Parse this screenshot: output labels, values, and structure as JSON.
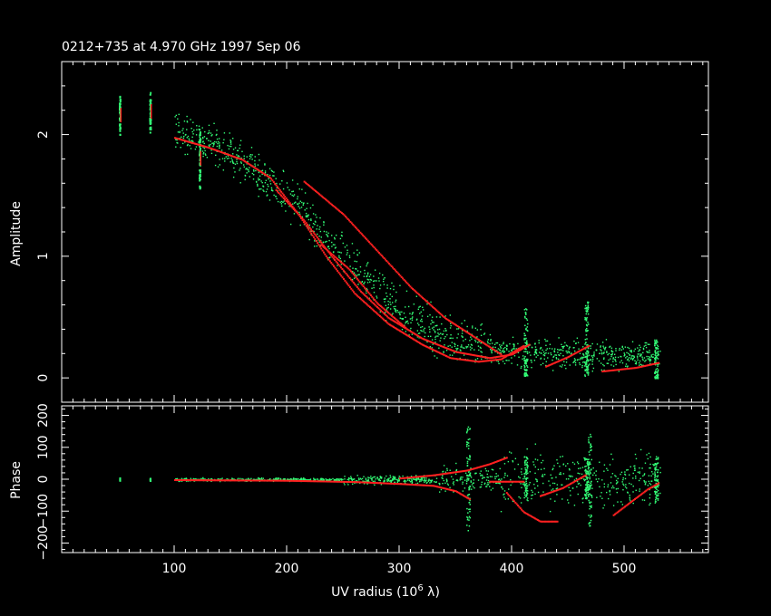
{
  "title": "0212+735 at 4.970 GHz 1997 Sep 06",
  "colors": {
    "background": "#000000",
    "axes": "#ffffff",
    "data": "#33ff77",
    "model": "#ff2020"
  },
  "chart_data": [
    {
      "type": "scatter",
      "name": "amplitude-panel",
      "title": "0212+735 at 4.970 GHz 1997 Sep 06",
      "xlabel": "UV radius  (10",
      "xlabel_sup": "6",
      "xlabel_tail": " λ)",
      "ylabel": "Amplitude",
      "xlim": [
        0,
        575
      ],
      "ylim": [
        -0.2,
        2.6
      ],
      "xticks": [
        100,
        200,
        300,
        400,
        500
      ],
      "yticks": [
        0,
        1,
        2
      ],
      "ytick_labels": [
        "0",
        "1",
        "2"
      ],
      "grid": false,
      "clusters": [
        {
          "x": 52,
          "y_min": 2.0,
          "y_max": 2.32
        },
        {
          "x": 79,
          "y_min": 2.02,
          "y_max": 2.36
        },
        {
          "x": 123,
          "y_min": 1.55,
          "y_max": 2.06
        }
      ],
      "data_trend": [
        [
          100,
          2.05
        ],
        [
          150,
          1.85
        ],
        [
          200,
          1.5
        ],
        [
          250,
          1.0
        ],
        [
          300,
          0.55
        ],
        [
          350,
          0.3
        ],
        [
          400,
          0.22
        ],
        [
          450,
          0.2
        ],
        [
          530,
          0.18
        ]
      ],
      "model_curves": [
        [
          [
            100,
            1.98
          ],
          [
            130,
            1.9
          ],
          [
            160,
            1.8
          ],
          [
            185,
            1.65
          ],
          [
            210,
            1.35
          ],
          [
            235,
            1.0
          ],
          [
            260,
            0.7
          ],
          [
            290,
            0.45
          ],
          [
            320,
            0.28
          ],
          [
            345,
            0.17
          ],
          [
            370,
            0.14
          ],
          [
            390,
            0.16
          ],
          [
            410,
            0.27
          ]
        ],
        [
          [
            190,
            1.55
          ],
          [
            215,
            1.3
          ],
          [
            240,
            1.0
          ],
          [
            265,
            0.72
          ],
          [
            290,
            0.5
          ],
          [
            320,
            0.33
          ],
          [
            350,
            0.22
          ],
          [
            380,
            0.17
          ],
          [
            400,
            0.2
          ],
          [
            415,
            0.28
          ]
        ],
        [
          [
            230,
            1.1
          ],
          [
            255,
            0.9
          ],
          [
            280,
            0.62
          ],
          [
            305,
            0.42
          ]
        ],
        [
          [
            215,
            1.62
          ],
          [
            250,
            1.35
          ],
          [
            280,
            1.05
          ],
          [
            310,
            0.75
          ],
          [
            340,
            0.5
          ],
          [
            370,
            0.32
          ],
          [
            390,
            0.2
          ]
        ],
        [
          [
            430,
            0.1
          ],
          [
            450,
            0.18
          ],
          [
            468,
            0.27
          ]
        ],
        [
          [
            480,
            0.06
          ],
          [
            510,
            0.09
          ],
          [
            530,
            0.13
          ]
        ]
      ]
    },
    {
      "type": "scatter",
      "name": "phase-panel",
      "xlabel": "UV radius  (10",
      "ylabel": "Phase",
      "xlim": [
        0,
        575
      ],
      "ylim": [
        -230,
        230
      ],
      "xticks": [
        100,
        200,
        300,
        400,
        500
      ],
      "xtick_labels": [
        "100",
        "200",
        "300",
        "400",
        "500"
      ],
      "yticks": [
        -200,
        -100,
        0,
        100,
        200
      ],
      "ytick_labels": [
        "−200",
        "−100",
        "0",
        "100",
        "200"
      ],
      "grid": false,
      "clusters": [
        {
          "x": 52,
          "y_min": -3,
          "y_max": 6
        },
        {
          "x": 79,
          "y_min": -3,
          "y_max": 5
        }
      ],
      "model_curves": [
        [
          [
            100,
            0
          ],
          [
            200,
            -2
          ],
          [
            260,
            -6
          ],
          [
            300,
            -12
          ],
          [
            330,
            -18
          ],
          [
            350,
            -35
          ],
          [
            362,
            -60
          ]
        ],
        [
          [
            300,
            5
          ],
          [
            330,
            15
          ],
          [
            360,
            30
          ],
          [
            380,
            50
          ],
          [
            395,
            70
          ]
        ],
        [
          [
            395,
            -40
          ],
          [
            410,
            -100
          ],
          [
            425,
            -130
          ],
          [
            440,
            -130
          ]
        ],
        [
          [
            425,
            -50
          ],
          [
            445,
            -25
          ],
          [
            465,
            15
          ]
        ],
        [
          [
            490,
            -110
          ],
          [
            505,
            -70
          ],
          [
            520,
            -30
          ],
          [
            530,
            -10
          ]
        ],
        [
          [
            380,
            -5
          ],
          [
            410,
            -5
          ]
        ]
      ]
    }
  ]
}
